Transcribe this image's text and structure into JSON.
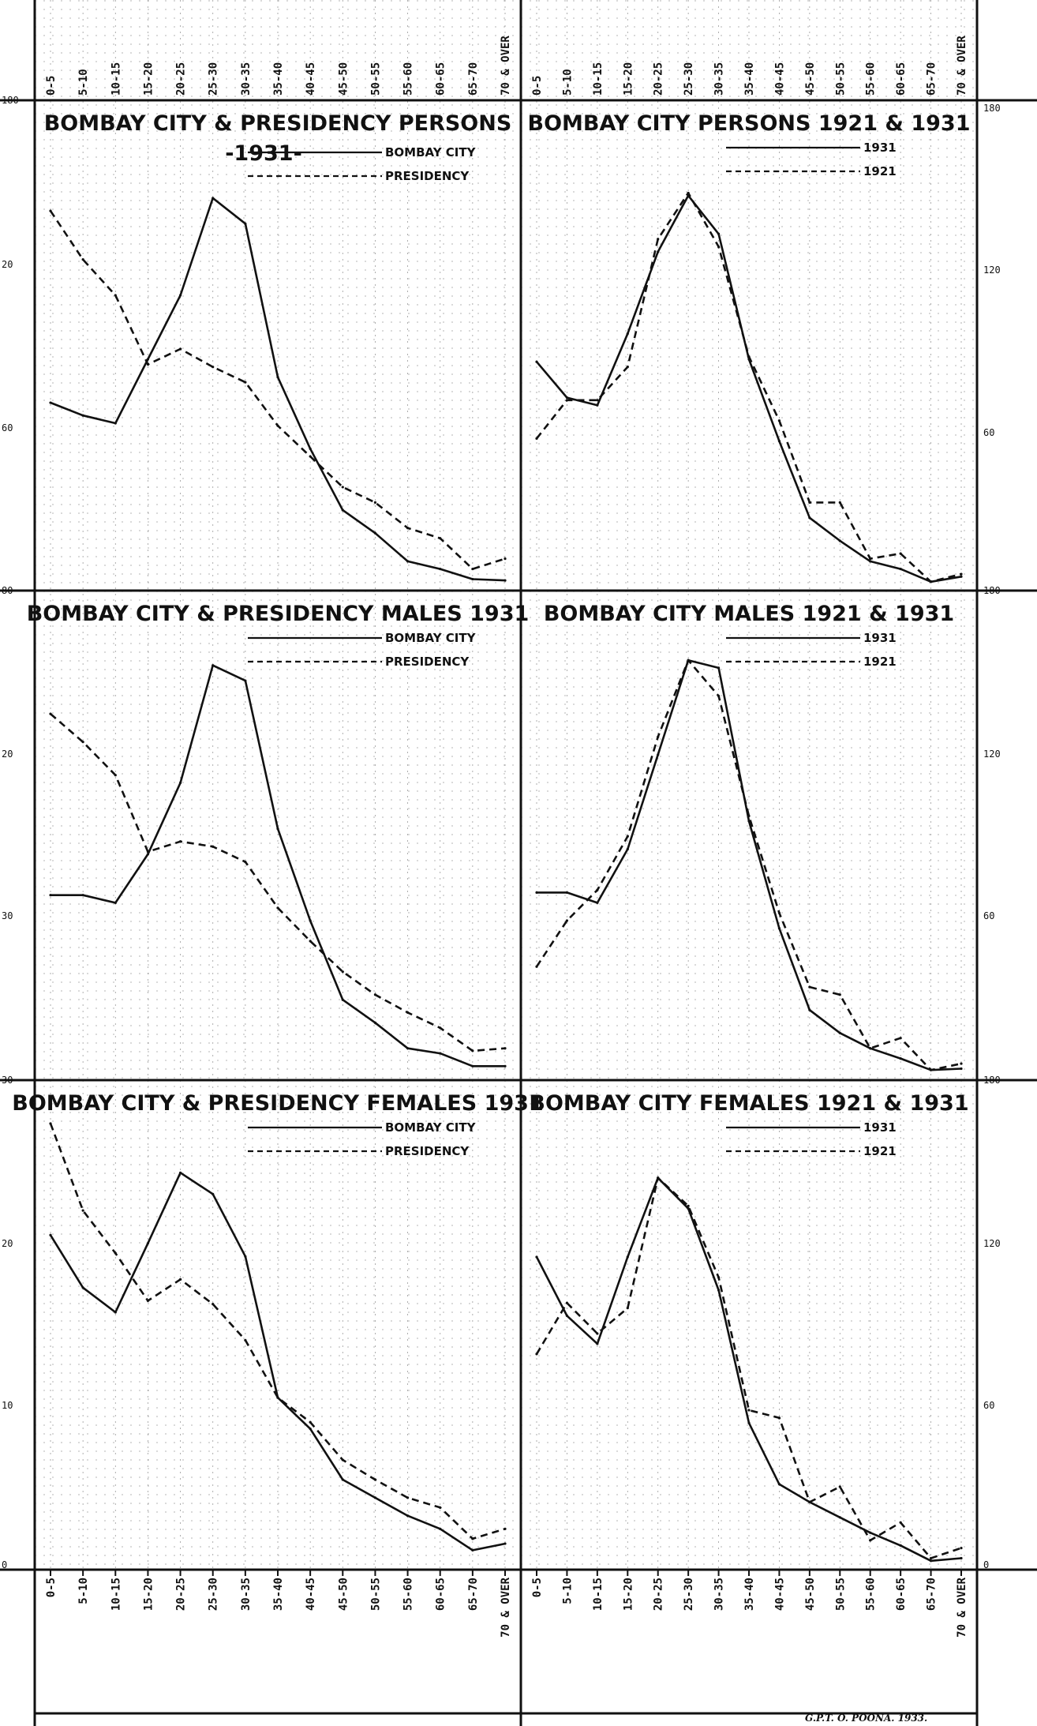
{
  "page": {
    "imprint": "G.P.T. O. POONA. 1933."
  },
  "axis": {
    "categories_top": [
      "0-5",
      "5-10",
      "10-15",
      "15-20",
      "20-25",
      "25-30",
      "30-35",
      "35-40",
      "40-45",
      "45-50",
      "50-55",
      "55-60",
      "60-65",
      "65-70",
      "70 & OVER"
    ],
    "categories_bottom": [
      "0-5",
      "5-10",
      "10-15",
      "15-20",
      "20-25",
      "25-30",
      "30-35",
      "35-40",
      "40-45",
      "45-50",
      "50-55",
      "55-60",
      "60-65",
      "65-70",
      "70 & OVER"
    ]
  },
  "y_labels": {
    "left": [
      "180",
      "20",
      "60",
      "80",
      "20",
      "",
      "30",
      "30",
      "20",
      "10",
      "0"
    ],
    "right": [
      "180",
      "120",
      "60",
      "180",
      "120",
      "60",
      "180",
      "120",
      "60",
      "0"
    ]
  },
  "chart_data": [
    {
      "type": "line",
      "title": "BOMBAY CITY & PRESIDENCY PERSONS",
      "subtitle": "-1931-",
      "categories": [
        "0-5",
        "5-10",
        "10-15",
        "15-20",
        "20-25",
        "25-30",
        "30-35",
        "35-40",
        "40-45",
        "45-50",
        "50-55",
        "55-60",
        "60-65",
        "65-70",
        "70 & OVER"
      ],
      "series": [
        {
          "name": "BOMBAY CITY",
          "style": "solid",
          "values": [
            71,
            66,
            63,
            88,
            113,
            151,
            141,
            81,
            53,
            29,
            20,
            9,
            6,
            2,
            1.5
          ]
        },
        {
          "name": "PRESIDENCY",
          "style": "dashed",
          "values": [
            146,
            127,
            113,
            86,
            92,
            85,
            79,
            62,
            50,
            38,
            32,
            22,
            18,
            6,
            10
          ]
        }
      ],
      "ylim": [
        0,
        180
      ]
    },
    {
      "type": "line",
      "title": "BOMBAY CITY PERSONS 1921 & 1931",
      "categories": [
        "0-5",
        "5-10",
        "10-15",
        "15-20",
        "20-25",
        "25-30",
        "30-35",
        "35-40",
        "40-45",
        "45-50",
        "50-55",
        "55-60",
        "60-65",
        "65-70",
        "70 & OVER"
      ],
      "series": [
        {
          "name": "1931",
          "style": "solid",
          "values": [
            87,
            73,
            70,
            98,
            130,
            152,
            137,
            88,
            56,
            26,
            17,
            9,
            6,
            1,
            3
          ]
        },
        {
          "name": "1921",
          "style": "dashed",
          "values": [
            57,
            72,
            72,
            85,
            135,
            153,
            132,
            89,
            64,
            32,
            32,
            10,
            12,
            1,
            4
          ]
        }
      ],
      "ylim": [
        0,
        180
      ]
    },
    {
      "type": "line",
      "title": "BOMBAY CITY & PRESIDENCY MALES 1931",
      "categories": [
        "0-5",
        "5-10",
        "10-15",
        "15-20",
        "20-25",
        "25-30",
        "30-35",
        "35-40",
        "40-45",
        "45-50",
        "50-55",
        "55-60",
        "60-65",
        "65-70",
        "70 & OVER"
      ],
      "series": [
        {
          "name": "BOMBAY CITY",
          "style": "solid",
          "values": [
            70,
            70,
            67,
            86,
            114,
            160,
            154,
            96,
            60,
            29,
            20,
            10,
            8,
            3,
            3
          ]
        },
        {
          "name": "PRESIDENCY",
          "style": "dashed",
          "values": [
            141,
            130,
            117,
            87,
            91,
            89,
            83,
            65,
            52,
            40,
            31,
            24,
            18,
            9,
            10
          ]
        }
      ],
      "ylim": [
        0,
        180
      ]
    },
    {
      "type": "line",
      "title": "BOMBAY CITY MALES 1921 & 1931",
      "categories": [
        "0-5",
        "5-10",
        "10-15",
        "15-20",
        "20-25",
        "25-30",
        "30-35",
        "35-40",
        "40-45",
        "45-50",
        "50-55",
        "55-60",
        "60-65",
        "65-70",
        "70 & OVER"
      ],
      "series": [
        {
          "name": "1931",
          "style": "solid",
          "values": [
            71,
            71,
            67,
            88,
            125,
            162,
            159,
            99,
            57,
            25,
            16,
            10,
            6,
            1.5,
            2
          ]
        },
        {
          "name": "1921",
          "style": "dashed",
          "values": [
            42,
            60,
            72,
            93,
            132,
            162,
            148,
            101,
            63,
            34,
            31,
            10,
            14,
            1.5,
            4
          ]
        }
      ],
      "ylim": [
        0,
        180
      ]
    },
    {
      "type": "line",
      "title": "BOMBAY CITY & PRESIDENCY FEMALES 1931",
      "categories": [
        "0-5",
        "5-10",
        "10-15",
        "15-20",
        "20-25",
        "25-30",
        "30-35",
        "35-40",
        "40-45",
        "45-50",
        "50-55",
        "55-60",
        "60-65",
        "65-70",
        "70 & OVER"
      ],
      "series": [
        {
          "name": "BOMBAY CITY",
          "style": "solid",
          "values": [
            20,
            16.8,
            15.3,
            19.5,
            23.8,
            22.5,
            18.7,
            10.1,
            8.2,
            5.1,
            4,
            2.9,
            2.1,
            0.8,
            1.2
          ]
        },
        {
          "name": "PRESIDENCY",
          "style": "dashed",
          "values": [
            26.8,
            21.5,
            18.9,
            16,
            17.3,
            15.8,
            13.6,
            10.1,
            8.6,
            6.3,
            5.1,
            4,
            3.4,
            1.5,
            2.1
          ]
        }
      ],
      "ylim": [
        0,
        28
      ]
    },
    {
      "type": "line",
      "title": "BOMBAY CITY FEMALES 1921 & 1931",
      "categories": [
        "0-5",
        "5-10",
        "10-15",
        "15-20",
        "20-25",
        "25-30",
        "30-35",
        "35-40",
        "40-45",
        "45-50",
        "50-55",
        "55-60",
        "60-65",
        "65-70",
        "70 & OVER"
      ],
      "series": [
        {
          "name": "1931",
          "style": "solid",
          "values": [
            120,
            97,
            86,
            120,
            151,
            139,
            107,
            55,
            31,
            24,
            18,
            12,
            7,
            1,
            2
          ]
        },
        {
          "name": "1921",
          "style": "dashed",
          "values": [
            82,
            102,
            90,
            100,
            151,
            140,
            112,
            60,
            57,
            24,
            30,
            9,
            16,
            2,
            6
          ]
        }
      ],
      "ylim": [
        0,
        180
      ]
    }
  ]
}
